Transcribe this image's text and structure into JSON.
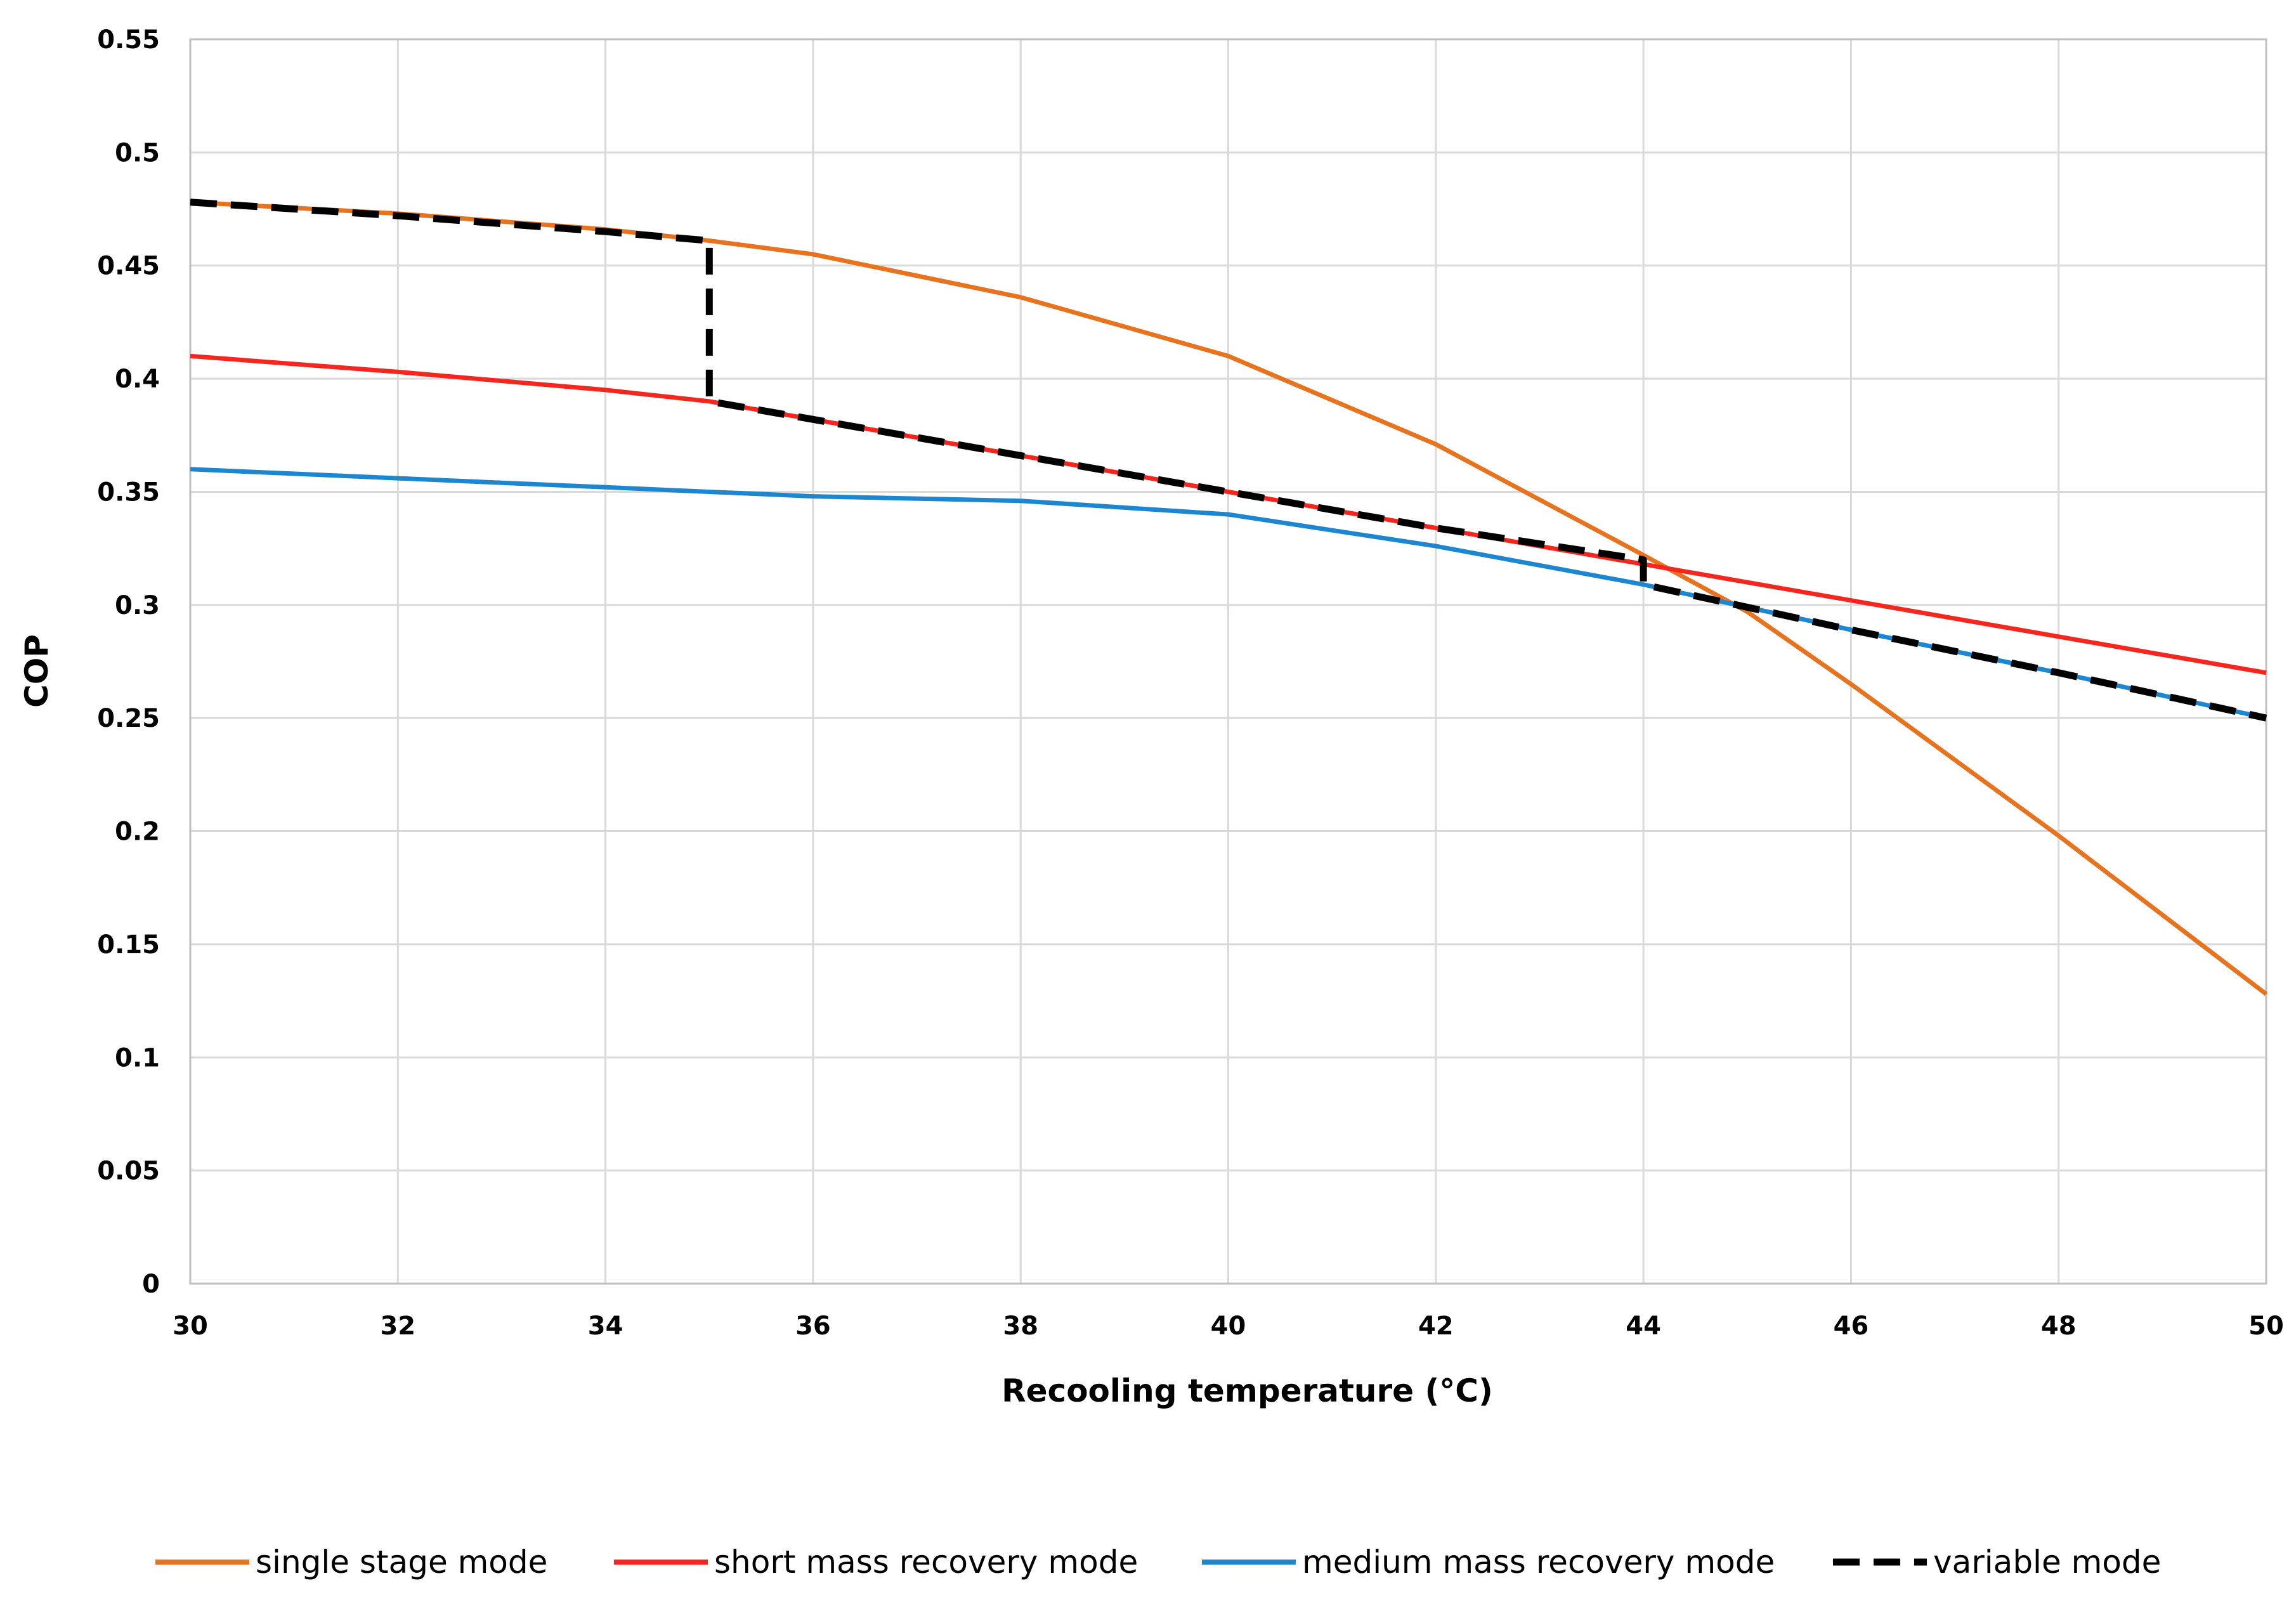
{
  "chart_data": {
    "type": "line",
    "title": "",
    "xlabel": "Recooling temperature  (°C)",
    "ylabel": "COP",
    "xlim": [
      30,
      50
    ],
    "ylim": [
      0,
      0.55
    ],
    "x_ticks": [
      30,
      32,
      34,
      36,
      38,
      40,
      42,
      44,
      46,
      48,
      50
    ],
    "y_ticks": [
      0,
      0.05,
      0.1,
      0.15,
      0.2,
      0.25,
      0.3,
      0.35,
      0.4,
      0.45,
      0.5,
      0.55
    ],
    "x_tick_labels": [
      "30",
      "32",
      "34",
      "36",
      "38",
      "40",
      "42",
      "44",
      "46",
      "48",
      "50"
    ],
    "y_tick_labels": [
      "0",
      "0.05",
      "0.1",
      "0.15",
      "0.2",
      "0.25",
      "0.3",
      "0.35",
      "0.4",
      "0.45",
      "0.5",
      "0.55"
    ],
    "grid": true,
    "legend_position": "bottom",
    "series": [
      {
        "name": "single stage mode",
        "color": "#E8731E",
        "dash": "solid",
        "x": [
          30,
          32,
          34,
          35,
          36,
          38,
          40,
          42,
          44,
          45,
          46,
          48,
          50
        ],
        "y": [
          0.478,
          0.473,
          0.466,
          0.461,
          0.455,
          0.436,
          0.41,
          0.371,
          0.322,
          0.297,
          0.265,
          0.198,
          0.128
        ]
      },
      {
        "name": "short mass recovery mode",
        "color": "#F5261E",
        "dash": "solid",
        "x": [
          30,
          32,
          34,
          35,
          36,
          38,
          40,
          42,
          44,
          46,
          48,
          50
        ],
        "y": [
          0.41,
          0.403,
          0.395,
          0.39,
          0.382,
          0.366,
          0.35,
          0.334,
          0.318,
          0.302,
          0.286,
          0.27
        ]
      },
      {
        "name": "medium mass recovery mode",
        "color": "#1C86D0",
        "dash": "solid",
        "x": [
          30,
          32,
          34,
          36,
          38,
          40,
          42,
          44,
          46,
          48,
          50
        ],
        "y": [
          0.36,
          0.356,
          0.352,
          0.348,
          0.346,
          0.34,
          0.326,
          0.309,
          0.289,
          0.27,
          0.25
        ]
      },
      {
        "name": "variable mode",
        "color": "#000000",
        "dash": "dashed",
        "x": [
          30,
          32,
          34,
          35,
          35,
          36,
          38,
          40,
          42,
          44,
          44,
          46,
          48,
          50
        ],
        "y": [
          0.478,
          0.472,
          0.465,
          0.461,
          0.39,
          0.382,
          0.366,
          0.35,
          0.334,
          0.32,
          0.309,
          0.289,
          0.27,
          0.25
        ]
      }
    ]
  }
}
